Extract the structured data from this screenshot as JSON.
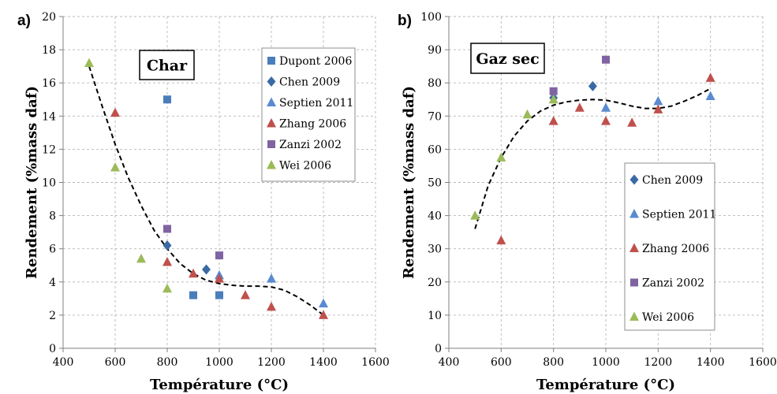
{
  "chart_data": [
    {
      "type": "scatter",
      "panel_label": "a)",
      "title": "Char",
      "xlabel": "Température (°C)",
      "ylabel": "Rendement  (%mass daf)",
      "xlim": [
        400,
        1600
      ],
      "ylim": [
        0,
        20
      ],
      "xticks": [
        "400",
        "600",
        "800",
        "1000",
        "1200",
        "1400",
        "1600"
      ],
      "yticks": [
        "0",
        "2",
        "4",
        "6",
        "8",
        "10",
        "12",
        "14",
        "16",
        "18",
        "20"
      ],
      "grid": true,
      "legend_position": "top-right",
      "series": [
        {
          "name": "Dupont 2006",
          "marker": "square",
          "color": "#4a7ebb",
          "x": [
            800,
            900,
            1000
          ],
          "y": [
            15.0,
            3.2,
            3.2
          ]
        },
        {
          "name": "Chen 2009",
          "marker": "diamond",
          "color": "#3a6aa6",
          "x": [
            800,
            950
          ],
          "y": [
            6.2,
            4.75
          ]
        },
        {
          "name": "Septien 2011",
          "marker": "triangle",
          "color": "#5a8ad0",
          "x": [
            1000,
            1200,
            1400
          ],
          "y": [
            4.4,
            4.2,
            2.7
          ]
        },
        {
          "name": "Zhang 2006",
          "marker": "triangle",
          "color": "#c0504d",
          "x": [
            600,
            800,
            900,
            1000,
            1100,
            1200,
            1400
          ],
          "y": [
            14.2,
            5.2,
            4.5,
            4.2,
            3.2,
            2.5,
            2.0
          ]
        },
        {
          "name": "Zanzi 2002",
          "marker": "square",
          "color": "#8064a2",
          "x": [
            800,
            1000
          ],
          "y": [
            7.2,
            5.6
          ]
        },
        {
          "name": "Wei 2006",
          "marker": "triangle",
          "color": "#9bbb59",
          "x": [
            500,
            600,
            700,
            800
          ],
          "y": [
            17.2,
            10.9,
            5.4,
            3.6
          ]
        }
      ],
      "trendline": {
        "style": "dashed",
        "color": "#000000",
        "x": [
          500,
          550,
          600,
          650,
          700,
          750,
          800,
          850,
          900,
          950,
          1000,
          1050,
          1100,
          1150,
          1200,
          1250,
          1300,
          1350,
          1400
        ],
        "y": [
          17.0,
          14.6,
          12.3,
          10.3,
          8.6,
          7.1,
          6.0,
          5.1,
          4.5,
          4.1,
          3.9,
          3.8,
          3.75,
          3.75,
          3.7,
          3.5,
          3.1,
          2.6,
          2.0
        ]
      }
    },
    {
      "type": "scatter",
      "panel_label": "b)",
      "title": "Gaz sec",
      "xlabel": "Température (°C)",
      "ylabel": "Rendement  (%mass daf)",
      "xlim": [
        400,
        1600
      ],
      "ylim": [
        0,
        100
      ],
      "xticks": [
        "400",
        "600",
        "800",
        "1000",
        "1200",
        "1400",
        "1600"
      ],
      "yticks": [
        "0",
        "10",
        "20",
        "30",
        "40",
        "50",
        "60",
        "70",
        "80",
        "90",
        "100"
      ],
      "grid": true,
      "legend_position": "bottom-right",
      "series": [
        {
          "name": "Chen 2009",
          "marker": "diamond",
          "color": "#3a6aa6",
          "x": [
            800,
            950
          ],
          "y": [
            75.5,
            79.0
          ]
        },
        {
          "name": "Septien 2011",
          "marker": "triangle",
          "color": "#5a8ad0",
          "x": [
            1000,
            1200,
            1400
          ],
          "y": [
            72.5,
            74.5,
            76.0
          ]
        },
        {
          "name": "Zhang 2006",
          "marker": "triangle",
          "color": "#c0504d",
          "x": [
            600,
            800,
            900,
            1000,
            1100,
            1200,
            1400
          ],
          "y": [
            32.5,
            68.5,
            72.5,
            68.5,
            68.0,
            72.0,
            81.5
          ]
        },
        {
          "name": "Zanzi 2002",
          "marker": "square",
          "color": "#8064a2",
          "x": [
            800,
            1000
          ],
          "y": [
            77.5,
            87.0
          ]
        },
        {
          "name": "Wei 2006",
          "marker": "triangle",
          "color": "#9bbb59",
          "x": [
            500,
            600,
            700,
            800
          ],
          "y": [
            40.0,
            57.5,
            70.5,
            75.0
          ]
        }
      ],
      "trendline": {
        "style": "dashed",
        "color": "#000000",
        "x": [
          500,
          550,
          600,
          650,
          700,
          750,
          800,
          850,
          900,
          950,
          1000,
          1050,
          1100,
          1150,
          1200,
          1250,
          1300,
          1350,
          1400
        ],
        "y": [
          36.0,
          49.0,
          57.5,
          64.0,
          68.5,
          71.5,
          73.3,
          74.3,
          74.8,
          75.0,
          74.8,
          74.0,
          73.0,
          72.3,
          72.3,
          73.0,
          74.5,
          76.2,
          78.3
        ]
      }
    }
  ]
}
